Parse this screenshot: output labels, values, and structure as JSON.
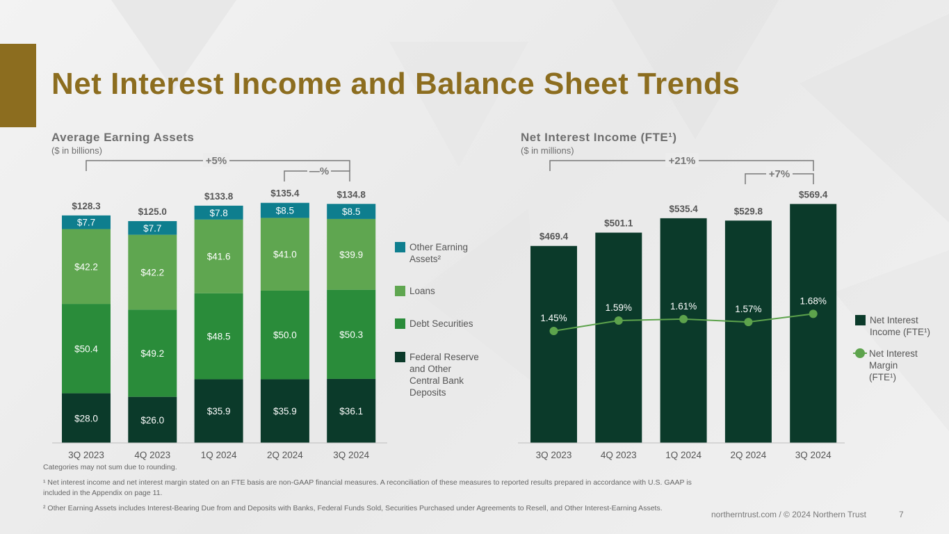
{
  "title": "Net Interest Income and Balance Sheet Trends",
  "colors": {
    "gold": "#8c6d1f",
    "other_earning_assets": "#0e7e8e",
    "loans": "#5fa650",
    "debt_securities": "#2a8c3a",
    "fed_reserve": "#0b3a2a",
    "nii_bar": "#0b3a2a",
    "nim_line": "#5da34c"
  },
  "left": {
    "title": "Average Earning Assets",
    "unit": "($ in billions)",
    "growth_overall": "+5%",
    "growth_recent": "—%"
  },
  "right": {
    "title": "Net Interest Income (FTE¹)",
    "unit": "($ in millions)",
    "growth_overall": "+21%",
    "growth_recent": "+7%"
  },
  "chart_data": [
    {
      "type": "bar",
      "stacked": true,
      "title": "Average Earning Assets",
      "ylabel": "($ in billions)",
      "categories": [
        "3Q 2023",
        "4Q 2023",
        "1Q 2024",
        "2Q 2024",
        "3Q 2024"
      ],
      "series": [
        {
          "name": "Federal Reserve and Other Central Bank Deposits",
          "values": [
            28.0,
            26.0,
            35.9,
            35.9,
            36.1
          ],
          "labels": [
            "$28.0",
            "$26.0",
            "$35.9",
            "$35.9",
            "$36.1"
          ],
          "color": "#0b3a2a"
        },
        {
          "name": "Debt Securities",
          "values": [
            50.4,
            49.2,
            48.5,
            50.0,
            50.3
          ],
          "labels": [
            "$50.4",
            "$49.2",
            "$48.5",
            "$50.0",
            "$50.3"
          ],
          "color": "#2a8c3a"
        },
        {
          "name": "Loans",
          "values": [
            42.2,
            42.2,
            41.6,
            41.0,
            39.9
          ],
          "labels": [
            "$42.2",
            "$42.2",
            "$41.6",
            "$41.0",
            "$39.9"
          ],
          "color": "#5fa650"
        },
        {
          "name": "Other Earning Assets²",
          "values": [
            7.7,
            7.7,
            7.8,
            8.5,
            8.5
          ],
          "labels": [
            "$7.7",
            "$7.7",
            "$7.8",
            "$8.5",
            "$8.5"
          ],
          "color": "#0e7e8e"
        }
      ],
      "totals": [
        128.3,
        125.0,
        133.8,
        135.4,
        134.8
      ],
      "total_labels": [
        "$128.3",
        "$125.0",
        "$133.8",
        "$135.4",
        "$134.8"
      ],
      "ylim": [
        0,
        140
      ],
      "legend_position": "right"
    },
    {
      "type": "bar",
      "title": "Net Interest Income (FTE¹)",
      "ylabel": "($ in millions)",
      "categories": [
        "3Q 2023",
        "4Q 2023",
        "1Q 2024",
        "2Q 2024",
        "3Q 2024"
      ],
      "series": [
        {
          "name": "Net Interest Income (FTE¹)",
          "values": [
            469.4,
            501.1,
            535.4,
            529.8,
            569.4
          ],
          "labels": [
            "$469.4",
            "$501.1",
            "$535.4",
            "$529.8",
            "$569.4"
          ],
          "color": "#0b3a2a"
        }
      ],
      "line_series": [
        {
          "name": "Net Interest Margin (FTE¹)",
          "values": [
            1.45,
            1.59,
            1.61,
            1.57,
            1.68
          ],
          "labels": [
            "1.45%",
            "1.59%",
            "1.61%",
            "1.57%",
            "1.68%"
          ],
          "color": "#5da34c"
        }
      ],
      "ylim": [
        0,
        600
      ],
      "legend_position": "right"
    }
  ],
  "legend_left": [
    {
      "label": "Other Earning\nAssets²",
      "color": "#0e7e8e"
    },
    {
      "label": "Loans",
      "color": "#5fa650"
    },
    {
      "label": "Debt Securities",
      "color": "#2a8c3a"
    },
    {
      "label": "Federal Reserve\nand Other\nCentral Bank\nDeposits",
      "color": "#0b3a2a"
    }
  ],
  "legend_right": [
    {
      "label": "Net Interest\nIncome (FTE¹)",
      "color": "#0b3a2a"
    },
    {
      "label": "Net Interest\nMargin\n(FTE¹)",
      "color": "#5da34c"
    }
  ],
  "notes": {
    "rounding": "Categories may not sum due to rounding.",
    "footnote1": "¹ Net interest income and net interest margin stated on an FTE basis are non-GAAP financial measures. A reconciliation of these measures to reported results prepared in accordance with U.S. GAAP is included in the Appendix on page 11.",
    "footnote2": "² Other Earning Assets includes Interest-Bearing Due from and Deposits with Banks, Federal Funds Sold, Securities Purchased under Agreements to Resell, and Other Interest-Earning Assets."
  },
  "footer": "northerntrust.com / © 2024 Northern Trust",
  "page_number": "7"
}
